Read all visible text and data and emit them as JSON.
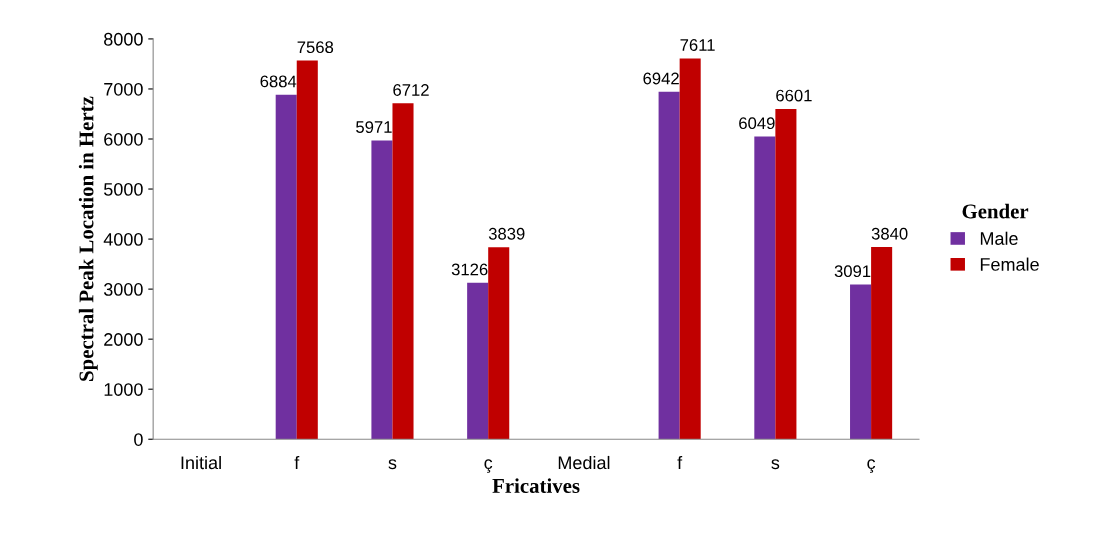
{
  "chart_data": {
    "type": "bar",
    "xlabel": "Fricatives",
    "ylabel": "Spectral Peak Location in Hertz",
    "legend_title": "Gender",
    "categories": [
      "Initial",
      "f",
      "s",
      "ç",
      "Medial",
      "f",
      "s",
      "ç"
    ],
    "series": [
      {
        "name": "Male",
        "color": "#7030a0",
        "values": [
          null,
          6884,
          5971,
          3126,
          null,
          6942,
          6049,
          3091
        ]
      },
      {
        "name": "Female",
        "color": "#c00000",
        "values": [
          null,
          7568,
          6712,
          3839,
          null,
          7611,
          6601,
          3840
        ]
      }
    ],
    "ylim": [
      0,
      8000
    ],
    "yticks": [
      0,
      1000,
      2000,
      3000,
      4000,
      5000,
      6000,
      7000,
      8000
    ],
    "data_labels": true,
    "grid": false,
    "legend": "right"
  }
}
